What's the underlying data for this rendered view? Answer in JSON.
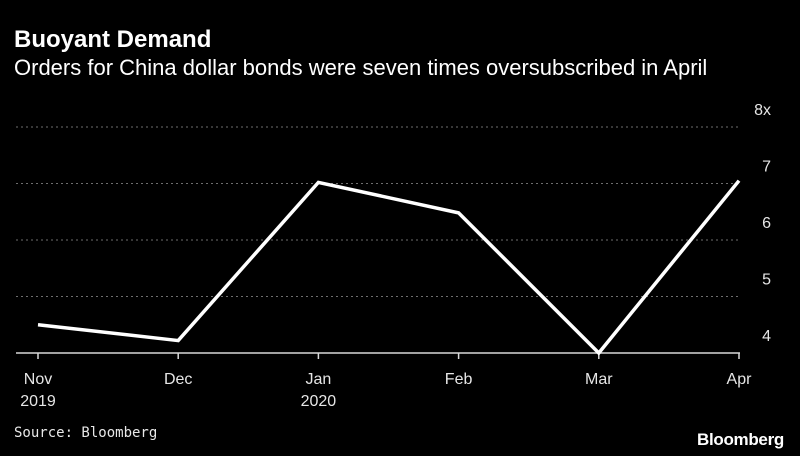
{
  "header": {
    "title": "Buoyant Demand",
    "subtitle": "Orders for China dollar bonds were seven times oversubscribed in April"
  },
  "footer": {
    "source": "Source: Bloomberg",
    "logo": "Bloomberg"
  },
  "colors": {
    "background": "#000000",
    "line": "#ffffff",
    "grid": "#6e6e6e",
    "text": "#ffffff"
  },
  "chart_data": {
    "type": "line",
    "title": "",
    "xlabel": "",
    "ylabel": "",
    "categories": [
      [
        "Nov",
        "2019"
      ],
      [
        "Dec"
      ],
      [
        "Jan",
        "2020"
      ],
      [
        "Feb"
      ],
      [
        "Mar"
      ],
      [
        "Apr"
      ]
    ],
    "series": [
      {
        "values": [
          4.5,
          4.22,
          7.02,
          6.48,
          4.0,
          7.05
        ]
      }
    ],
    "ylim": [
      4,
      8
    ],
    "yticks": [
      {
        "value": 8,
        "label": "8x"
      },
      {
        "value": 7,
        "label": "7"
      },
      {
        "value": 6,
        "label": "6"
      },
      {
        "value": 5,
        "label": "5"
      },
      {
        "value": 4,
        "label": "4"
      }
    ],
    "grid": "horizontal dotted",
    "legend": "none"
  }
}
